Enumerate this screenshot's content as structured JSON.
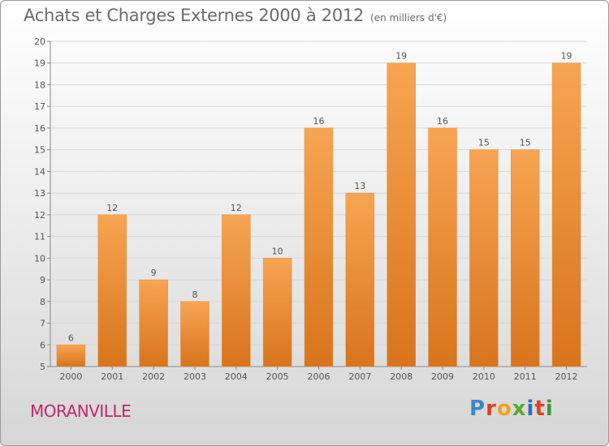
{
  "header": {
    "title": "Achats et Charges Externes 2000 à 2012",
    "unit": "(en milliers d'€)"
  },
  "footer": {
    "commune": "MORANVILLE",
    "brand": "Proxiti",
    "brand_colors": [
      "#3a88c8",
      "#e2401f",
      "#f5a01a",
      "#5aaa2a",
      "#2a6fc0",
      "#e2401f",
      "#3a9a3a"
    ]
  },
  "colors": {
    "bar_light": "#f7a553",
    "bar_dark": "#d8741c",
    "text": "#555555",
    "grid": "#d8d8d8"
  },
  "chart_data": {
    "type": "bar",
    "title": "Achats et Charges Externes 2000 à 2012",
    "subtitle": "(en milliers d'€)",
    "categories": [
      "2000",
      "2001",
      "2002",
      "2003",
      "2004",
      "2005",
      "2006",
      "2007",
      "2008",
      "2009",
      "2010",
      "2011",
      "2012"
    ],
    "values": [
      6,
      12,
      9,
      8,
      12,
      10,
      16,
      13,
      19,
      16,
      15,
      15,
      19
    ],
    "ylim": [
      5,
      20
    ],
    "yticks": [
      5,
      6,
      7,
      8,
      9,
      10,
      11,
      12,
      13,
      14,
      15,
      16,
      17,
      18,
      19,
      20
    ],
    "grid": true
  }
}
